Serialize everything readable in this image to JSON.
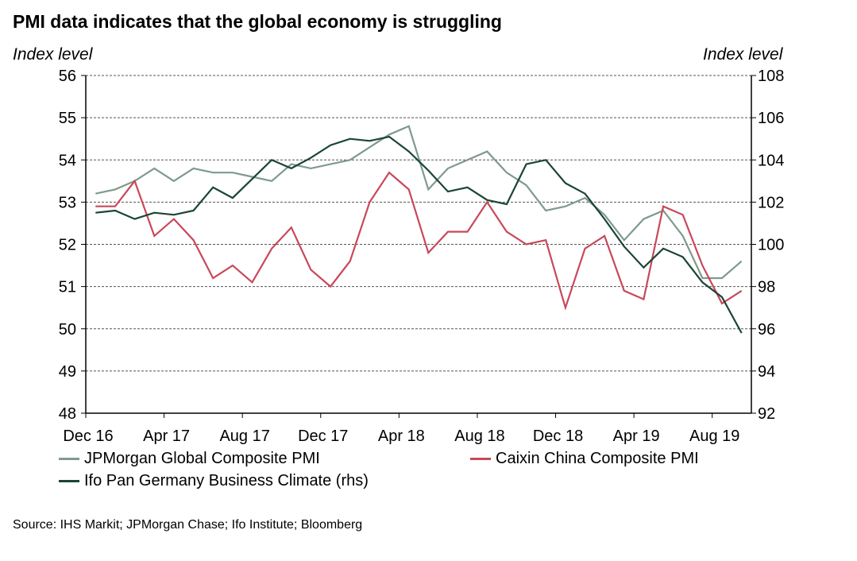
{
  "chart_data": {
    "type": "line",
    "title": "PMI data indicates that the global economy is struggling",
    "ylabel_left": "Index level",
    "ylabel_right": "Index level",
    "ylim_left": [
      48,
      56
    ],
    "ylim_right": [
      92,
      108
    ],
    "yticks_left": [
      "48",
      "49",
      "50",
      "51",
      "52",
      "53",
      "54",
      "55",
      "56"
    ],
    "yticks_right": [
      "92",
      "94",
      "96",
      "98",
      "100",
      "102",
      "104",
      "106",
      "108"
    ],
    "xtick_labels": [
      "Dec 16",
      "Apr 17",
      "Aug 17",
      "Dec 17",
      "Apr 18",
      "Aug 18",
      "Dec 18",
      "Apr 19",
      "Aug 19"
    ],
    "x": [
      "Dec 16",
      "Jan 17",
      "Feb 17",
      "Mar 17",
      "Apr 17",
      "May 17",
      "Jun 17",
      "Jul 17",
      "Aug 17",
      "Sep 17",
      "Oct 17",
      "Nov 17",
      "Dec 17",
      "Jan 18",
      "Feb 18",
      "Mar 18",
      "Apr 18",
      "May 18",
      "Jun 18",
      "Jul 18",
      "Aug 18",
      "Sep 18",
      "Oct 18",
      "Nov 18",
      "Dec 18",
      "Jan 19",
      "Feb 19",
      "Mar 19",
      "Apr 19",
      "May 19",
      "Jun 19",
      "Jul 19",
      "Aug 19",
      "Sep 19"
    ],
    "grid": true,
    "legend_placement": "bottom",
    "series": [
      {
        "name": "JPMorgan Global Composite PMI",
        "axis": "left",
        "color": "#7f9a8d",
        "values": [
          53.2,
          53.3,
          53.5,
          53.8,
          53.5,
          53.8,
          53.7,
          53.7,
          53.6,
          53.5,
          53.9,
          53.8,
          53.9,
          54.0,
          54.3,
          54.6,
          54.8,
          53.3,
          53.8,
          54.0,
          54.2,
          53.7,
          53.4,
          52.8,
          52.9,
          53.1,
          52.7,
          52.1,
          52.6,
          52.8,
          52.2,
          51.2,
          51.2,
          51.6
        ]
      },
      {
        "name": "Caixin China Composite PMI",
        "axis": "left",
        "color": "#c8485a",
        "values": [
          52.9,
          52.9,
          53.5,
          52.2,
          52.6,
          52.1,
          51.2,
          51.5,
          51.1,
          51.9,
          52.4,
          51.4,
          51.0,
          51.6,
          53.0,
          53.7,
          53.3,
          51.8,
          52.3,
          52.3,
          53.0,
          52.3,
          52.0,
          52.1,
          50.5,
          51.9,
          52.2,
          50.9,
          50.7,
          52.9,
          52.7,
          51.5,
          50.6,
          50.9
        ]
      },
      {
        "name": "Ifo Pan Germany Business Climate (rhs)",
        "axis": "right",
        "color": "#1a4535",
        "values": [
          101.5,
          101.6,
          101.2,
          101.5,
          101.4,
          101.6,
          102.7,
          102.2,
          103.1,
          104.0,
          103.6,
          104.1,
          104.7,
          105.0,
          104.9,
          105.1,
          104.4,
          103.5,
          102.5,
          102.7,
          102.1,
          101.9,
          103.8,
          104.0,
          102.9,
          102.4,
          101.2,
          99.9,
          98.9,
          99.8,
          99.4,
          98.2,
          97.5,
          95.8
        ]
      }
    ],
    "source": "Source: IHS Markit; JPMorgan Chase; Ifo Institute; Bloomberg"
  }
}
